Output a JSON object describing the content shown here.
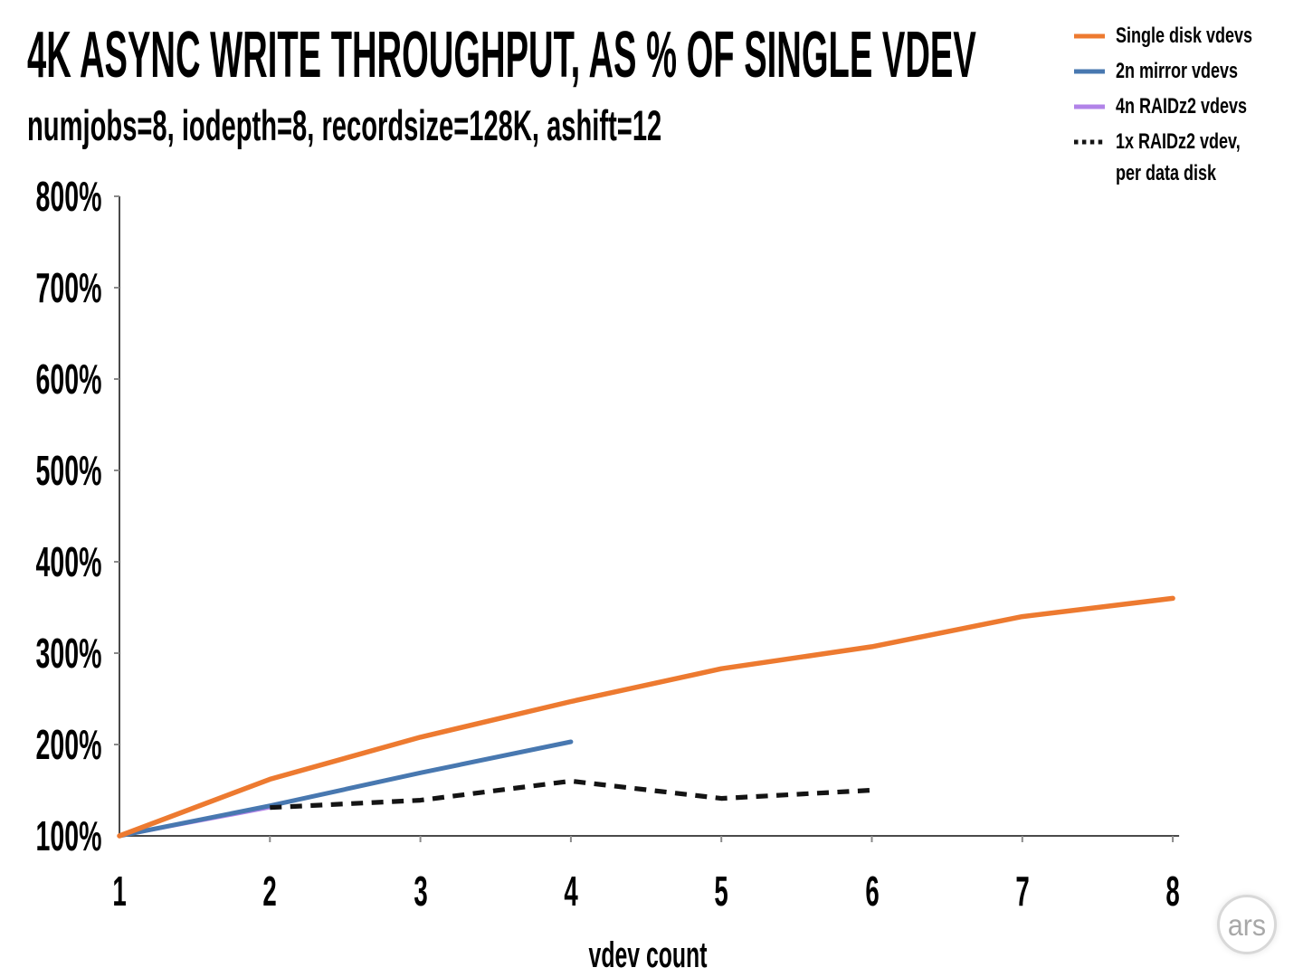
{
  "watermark": "ars",
  "colors": {
    "orange": "#ED7A30",
    "blue": "#4878B0",
    "purple": "#B183E8",
    "dashed_black": "#141414",
    "axis": "#4a4a4a",
    "tick": "#8a8a8a",
    "text": "#000000",
    "watermark_gray": "#a8a8a8"
  },
  "chart_data": {
    "type": "line",
    "title": "4K ASYNC WRITE THROUGHPUT, AS % OF SINGLE VDEV",
    "subtitle": "numjobs=8, iodepth=8, recordsize=128K, ashift=12",
    "xlabel": "vdev count",
    "ylabel": "",
    "xlim": [
      1,
      8
    ],
    "ylim": [
      100,
      800
    ],
    "grid": false,
    "legend_position": "top-right",
    "x_ticks": [
      1,
      2,
      3,
      4,
      5,
      6,
      7,
      8
    ],
    "x_tick_labels": [
      "1",
      "2",
      "3",
      "4",
      "5",
      "6",
      "7",
      "8"
    ],
    "y_ticks": [
      100,
      200,
      300,
      400,
      500,
      600,
      700,
      800
    ],
    "y_tick_labels": [
      "100%",
      "200%",
      "300%",
      "400%",
      "500%",
      "600%",
      "700%",
      "800%"
    ],
    "series": [
      {
        "name": "Single disk vdevs",
        "color": "#ED7A30",
        "style": "solid",
        "x": [
          1,
          2,
          3,
          4,
          5,
          6,
          7,
          8
        ],
        "values": [
          100,
          162,
          208,
          247,
          283,
          307,
          340,
          360
        ]
      },
      {
        "name": "2n mirror vdevs",
        "color": "#4878B0",
        "style": "solid",
        "x": [
          1,
          2,
          3,
          4
        ],
        "values": [
          100,
          133,
          169,
          203
        ]
      },
      {
        "name": "4n RAIDz2 vdevs",
        "color": "#B183E8",
        "style": "solid",
        "x": [
          1,
          2
        ],
        "values": [
          100,
          131
        ]
      },
      {
        "name": "1x RAIDz2 vdev, per data disk",
        "color": "#141414",
        "style": "dashed",
        "x": [
          2,
          3,
          4,
          5,
          6
        ],
        "values": [
          131,
          139,
          160,
          141,
          150
        ]
      }
    ]
  }
}
